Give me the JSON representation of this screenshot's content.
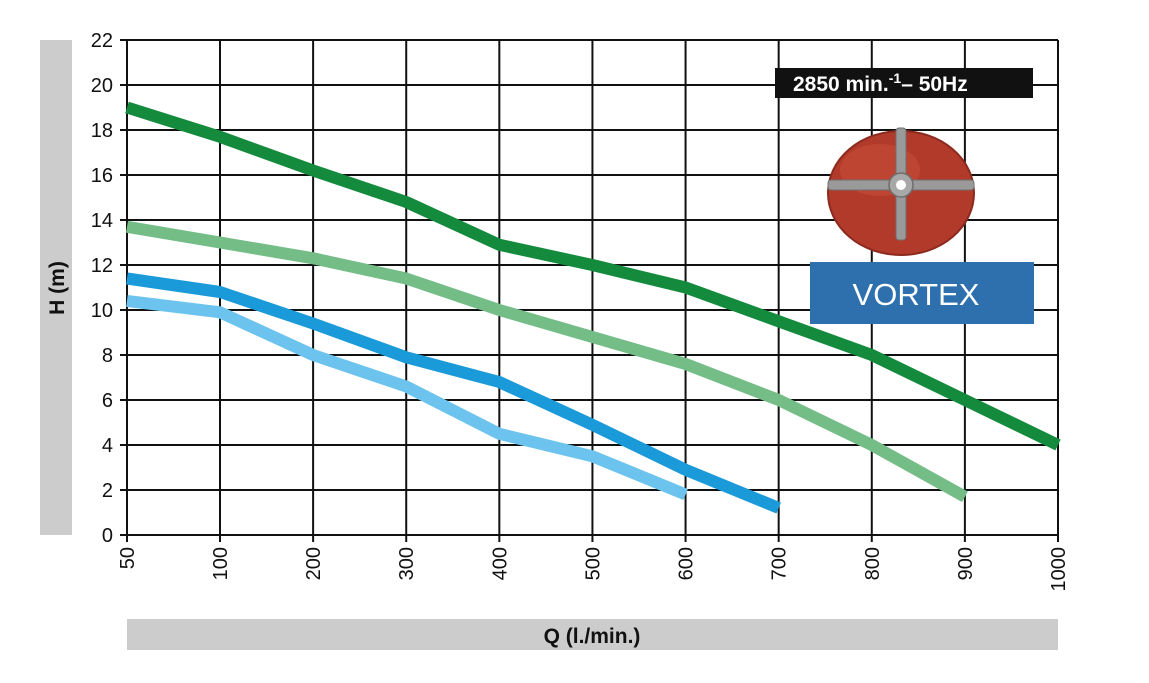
{
  "chart_data": {
    "type": "line",
    "title": "",
    "xlabel": "Q (l./min.)",
    "ylabel": "H (m)",
    "x_ticks": [
      "50",
      "100",
      "200",
      "300",
      "400",
      "500",
      "600",
      "700",
      "800",
      "900",
      "1000"
    ],
    "y_ticks": [
      "0",
      "2",
      "4",
      "6",
      "8",
      "10",
      "12",
      "14",
      "16",
      "18",
      "20",
      "22"
    ],
    "ylim": [
      0,
      22
    ],
    "grid": true,
    "annotation": {
      "speed_prefix": "2850 min.",
      "speed_superscript": "-1",
      "speed_suffix": "– 50Hz",
      "impeller_label": "VORTEX"
    },
    "series": [
      {
        "name": "dark-green",
        "color": "#138a3c",
        "x": [
          50,
          100,
          200,
          300,
          400,
          500,
          600,
          700,
          800,
          900,
          1000
        ],
        "y": [
          19.0,
          17.7,
          16.2,
          14.8,
          12.9,
          12.0,
          11.0,
          9.5,
          8.0,
          6.0,
          4.0
        ]
      },
      {
        "name": "light-green",
        "color": "#74bd87",
        "x": [
          50,
          100,
          200,
          300,
          400,
          500,
          600,
          700,
          800,
          900
        ],
        "y": [
          13.7,
          13.0,
          12.3,
          11.4,
          10.0,
          8.8,
          7.6,
          6.0,
          4.0,
          1.7
        ]
      },
      {
        "name": "blue",
        "color": "#1a9ad8",
        "x": [
          50,
          100,
          200,
          300,
          400,
          500,
          600,
          700
        ],
        "y": [
          11.4,
          10.8,
          9.4,
          7.9,
          6.8,
          4.9,
          2.9,
          1.2
        ]
      },
      {
        "name": "light-blue",
        "color": "#6cc4ee",
        "x": [
          50,
          100,
          200,
          300,
          400,
          500,
          600
        ],
        "y": [
          10.4,
          9.9,
          8.0,
          6.6,
          4.5,
          3.5,
          1.8
        ]
      }
    ]
  }
}
